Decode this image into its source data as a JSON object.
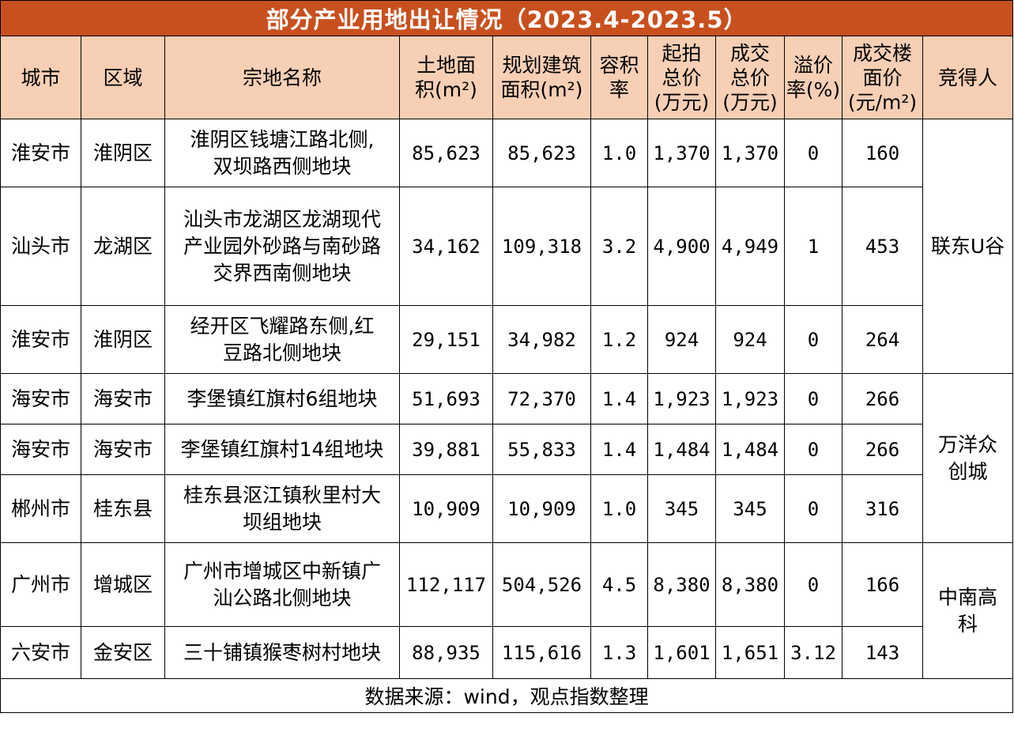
{
  "title": "部分产业用地出让情况（2023.4-2023.5）",
  "headers": {
    "city": "城市",
    "district": "区域",
    "parcel": "宗地名称",
    "land_area": [
      "土地面",
      "积(m²)"
    ],
    "build_area": [
      "规划建筑",
      "面积(m²)"
    ],
    "far": [
      "容积",
      "率"
    ],
    "start_price": [
      "起拍",
      "总价",
      "(万元)"
    ],
    "deal_price": [
      "成交",
      "总价",
      "(万元)"
    ],
    "premium": [
      "溢价",
      "率(%)"
    ],
    "floor_price": [
      "成交楼",
      "面价",
      "(元/m²)"
    ],
    "bidder": "竞得人"
  },
  "rows": [
    {
      "city": "淮安市",
      "district": "淮阴区",
      "parcel": [
        "淮阴区钱塘江路北侧,",
        "双坝路西侧地块"
      ],
      "land_area": "85,623",
      "build_area": "85,623",
      "far": "1.0",
      "start_price": "1,370",
      "deal_price": "1,370",
      "premium": "0",
      "floor_price": "160"
    },
    {
      "city": "汕头市",
      "district": "龙湖区",
      "parcel": [
        "汕头市龙湖区龙湖现代",
        "产业园外砂路与南砂路",
        "交界西南侧地块"
      ],
      "land_area": "34,162",
      "build_area": "109,318",
      "far": "3.2",
      "start_price": "4,900",
      "deal_price": "4,949",
      "premium": "1",
      "floor_price": "453"
    },
    {
      "city": "淮安市",
      "district": "淮阴区",
      "parcel": [
        "经开区飞耀路东侧,红",
        "豆路北侧地块"
      ],
      "land_area": "29,151",
      "build_area": "34,982",
      "far": "1.2",
      "start_price": "924",
      "deal_price": "924",
      "premium": "0",
      "floor_price": "264"
    },
    {
      "city": "海安市",
      "district": "海安市",
      "parcel": [
        "李堡镇红旗村6组地块"
      ],
      "land_area": "51,693",
      "build_area": "72,370",
      "far": "1.4",
      "start_price": "1,923",
      "deal_price": "1,923",
      "premium": "0",
      "floor_price": "266"
    },
    {
      "city": "海安市",
      "district": "海安市",
      "parcel": [
        "李堡镇红旗村14组地块"
      ],
      "land_area": "39,881",
      "build_area": "55,833",
      "far": "1.4",
      "start_price": "1,484",
      "deal_price": "1,484",
      "premium": "0",
      "floor_price": "266"
    },
    {
      "city": "郴州市",
      "district": "桂东县",
      "parcel": [
        "桂东县沤江镇秋里村大",
        "坝组地块"
      ],
      "land_area": "10,909",
      "build_area": "10,909",
      "far": "1.0",
      "start_price": "345",
      "deal_price": "345",
      "premium": "0",
      "floor_price": "316"
    },
    {
      "city": "广州市",
      "district": "增城区",
      "parcel": [
        "广州市增城区中新镇广",
        "汕公路北侧地块"
      ],
      "land_area": "112,117",
      "build_area": "504,526",
      "far": "4.5",
      "start_price": "8,380",
      "deal_price": "8,380",
      "premium": "0",
      "floor_price": "166"
    },
    {
      "city": "六安市",
      "district": "金安区",
      "parcel": [
        "三十铺镇猴枣树村地块"
      ],
      "land_area": "88,935",
      "build_area": "115,616",
      "far": "1.3",
      "start_price": "1,601",
      "deal_price": "1,651",
      "premium": "3.12",
      "floor_price": "143"
    }
  ],
  "bidders": [
    {
      "name": [
        "联东U谷"
      ]
    },
    {
      "name": [
        "万洋众",
        "创城"
      ]
    },
    {
      "name": [
        "中南高",
        "科"
      ]
    }
  ],
  "source": "数据来源：wind，观点指数整理",
  "colors": {
    "title_bg": "#c8501f",
    "header_bg": "#f7cfb4"
  }
}
